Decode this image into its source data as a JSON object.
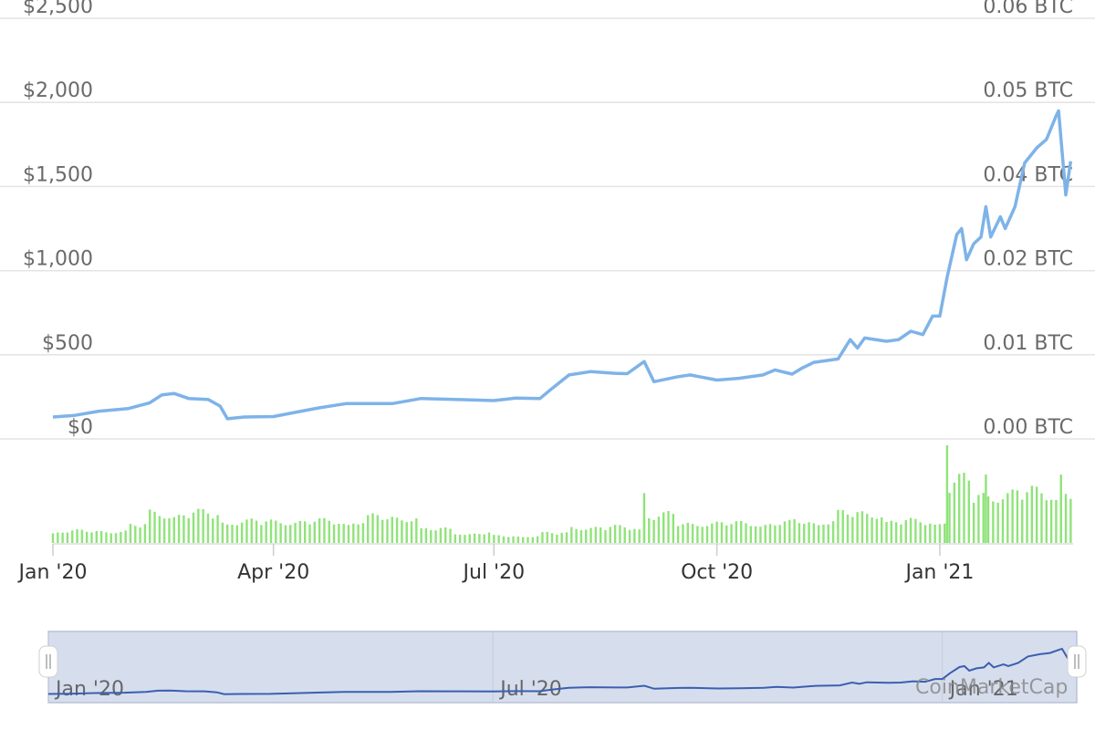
{
  "watermark": "CoinMarketCap",
  "colors": {
    "price_line": "#7eb3e8",
    "volume_bars": "#90e37a",
    "grid": "#e3e3e3",
    "navigator_fill": "#d6deee",
    "navigator_line": "#3b5fb0"
  },
  "chart_data": {
    "type": "line",
    "title": "",
    "left_axis": {
      "ticks": [
        "$0",
        "$500",
        "$1,000",
        "$1,500",
        "$2,000",
        "$2,500"
      ],
      "values": [
        0,
        500,
        1000,
        1500,
        2000,
        2500
      ],
      "ylim": [
        0,
        2500
      ]
    },
    "right_axis": {
      "ticks": [
        "0.00 BTC",
        "0.01 BTC",
        "0.02 BTC",
        "0.04 BTC",
        "0.05 BTC",
        "0.06 BTC"
      ]
    },
    "x_ticks": [
      "Jan '20",
      "Apr '20",
      "Jul '20",
      "Oct '20",
      "Jan '21"
    ],
    "x_tick_dates": [
      "2020-01-01",
      "2020-04-01",
      "2020-07-01",
      "2020-10-01",
      "2021-01-01"
    ],
    "navigator_labels": [
      "Jan '20",
      "Jul '20",
      "Jan '21"
    ],
    "navigator_label_dates": [
      "2020-01-01",
      "2020-07-01",
      "2021-01-01"
    ],
    "xlim": [
      "2020-01-01",
      "2021-02-25"
    ],
    "grid": true,
    "series": [
      {
        "kind": "price-line",
        "points": [
          [
            "2020-01-01",
            130
          ],
          [
            "2020-01-10",
            140
          ],
          [
            "2020-01-20",
            165
          ],
          [
            "2020-02-01",
            180
          ],
          [
            "2020-02-10",
            215
          ],
          [
            "2020-02-15",
            262
          ],
          [
            "2020-02-20",
            270
          ],
          [
            "2020-02-26",
            240
          ],
          [
            "2020-03-05",
            235
          ],
          [
            "2020-03-10",
            195
          ],
          [
            "2020-03-13",
            120
          ],
          [
            "2020-03-20",
            130
          ],
          [
            "2020-04-01",
            133
          ],
          [
            "2020-04-10",
            158
          ],
          [
            "2020-04-20",
            185
          ],
          [
            "2020-05-01",
            210
          ],
          [
            "2020-05-10",
            210
          ],
          [
            "2020-05-20",
            210
          ],
          [
            "2020-06-01",
            240
          ],
          [
            "2020-06-15",
            235
          ],
          [
            "2020-07-01",
            228
          ],
          [
            "2020-07-10",
            243
          ],
          [
            "2020-07-20",
            240
          ],
          [
            "2020-07-25",
            300
          ],
          [
            "2020-08-01",
            380
          ],
          [
            "2020-08-10",
            400
          ],
          [
            "2020-08-20",
            390
          ],
          [
            "2020-08-25",
            388
          ],
          [
            "2020-09-01",
            460
          ],
          [
            "2020-09-05",
            340
          ],
          [
            "2020-09-15",
            370
          ],
          [
            "2020-09-20",
            380
          ],
          [
            "2020-10-01",
            350
          ],
          [
            "2020-10-10",
            360
          ],
          [
            "2020-10-20",
            380
          ],
          [
            "2020-10-25",
            410
          ],
          [
            "2020-11-01",
            385
          ],
          [
            "2020-11-05",
            420
          ],
          [
            "2020-11-10",
            455
          ],
          [
            "2020-11-20",
            475
          ],
          [
            "2020-11-25",
            590
          ],
          [
            "2020-11-28",
            540
          ],
          [
            "2020-12-01",
            600
          ],
          [
            "2020-12-10",
            580
          ],
          [
            "2020-12-15",
            590
          ],
          [
            "2020-12-20",
            640
          ],
          [
            "2020-12-25",
            620
          ],
          [
            "2020-12-29",
            730
          ],
          [
            "2021-01-01",
            730
          ],
          [
            "2021-01-04",
            960
          ],
          [
            "2021-01-08",
            1215
          ],
          [
            "2021-01-10",
            1250
          ],
          [
            "2021-01-12",
            1065
          ],
          [
            "2021-01-15",
            1160
          ],
          [
            "2021-01-18",
            1200
          ],
          [
            "2021-01-20",
            1380
          ],
          [
            "2021-01-22",
            1200
          ],
          [
            "2021-01-26",
            1320
          ],
          [
            "2021-01-28",
            1250
          ],
          [
            "2021-02-01",
            1380
          ],
          [
            "2021-02-05",
            1640
          ],
          [
            "2021-02-10",
            1730
          ],
          [
            "2021-02-14",
            1780
          ],
          [
            "2021-02-18",
            1920
          ],
          [
            "2021-02-19",
            1950
          ],
          [
            "2021-02-22",
            1450
          ],
          [
            "2021-02-24",
            1650
          ]
        ]
      },
      {
        "kind": "volume-bars",
        "bar_every_days": 2,
        "levels": [
          {
            "from": "2020-01-01",
            "value": 0.12
          },
          {
            "from": "2020-02-01",
            "value": 0.18
          },
          {
            "from": "2020-02-10",
            "value": 0.3
          },
          {
            "from": "2020-03-10",
            "value": 0.22
          },
          {
            "from": "2020-04-01",
            "value": 0.22
          },
          {
            "from": "2020-05-10",
            "value": 0.26
          },
          {
            "from": "2020-06-01",
            "value": 0.14
          },
          {
            "from": "2020-06-15",
            "value": 0.1
          },
          {
            "from": "2020-07-01",
            "value": 0.07
          },
          {
            "from": "2020-07-20",
            "value": 0.1
          },
          {
            "from": "2020-08-01",
            "value": 0.16
          },
          {
            "from": "2020-09-01",
            "value": 0.28
          },
          {
            "from": "2020-09-15",
            "value": 0.2
          },
          {
            "from": "2020-11-01",
            "value": 0.22
          },
          {
            "from": "2020-11-20",
            "value": 0.3
          },
          {
            "from": "2020-12-10",
            "value": 0.22
          },
          {
            "from": "2021-01-04",
            "value": 0.62
          },
          {
            "from": "2021-01-15",
            "value": 0.5
          },
          {
            "from": "2021-02-01",
            "value": 0.52
          }
        ],
        "spikes": [
          [
            "2020-09-01",
            0.51
          ],
          [
            "2021-01-04",
            1.0
          ],
          [
            "2021-01-20",
            0.7
          ],
          [
            "2021-02-20",
            0.7
          ]
        ]
      }
    ]
  }
}
